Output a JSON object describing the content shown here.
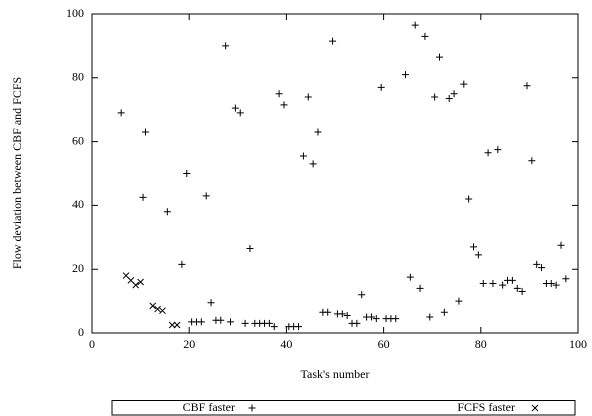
{
  "chart_data": {
    "type": "scatter",
    "x_label": "Task's number",
    "y_label": "Flow deviation between CBF and FCFS",
    "xlim": [
      0,
      100
    ],
    "xticks": [
      0,
      20,
      40,
      60,
      80,
      100
    ],
    "ylim": [
      0,
      100
    ],
    "yticks": [
      0,
      20,
      40,
      60,
      80,
      100
    ],
    "legend": "bottom",
    "series": [
      {
        "name": "CBF faster",
        "color": "#000000",
        "marker": "plus",
        "x": [
          6,
          11,
          10.5,
          15.5,
          18.5,
          19.5,
          20.5,
          21.5,
          22.5,
          23.5,
          24.5,
          25.5,
          26.5,
          27.5,
          28.5,
          29.5,
          30.5,
          31.5,
          32.5,
          33.5,
          34.5,
          35.5,
          36.5,
          37.5,
          38.5,
          39.5,
          40.5,
          41.5,
          42.5,
          43.5,
          44.5,
          45.5,
          46.5,
          47.5,
          48.5,
          49.5,
          50.5,
          51.5,
          52.5,
          53.5,
          54.5,
          55.5,
          56.5,
          57.5,
          58.5,
          59.5,
          60.5,
          61.5,
          62.5,
          64.5,
          65.5,
          66.5,
          67.5,
          68.5,
          69.5,
          70.5,
          71.5,
          72.5,
          73.5,
          74.5,
          75.5,
          76.5,
          77.5,
          78.5,
          79.5,
          80.5,
          81.5,
          82.5,
          83.5,
          84.5,
          85.5,
          86.5,
          87.5,
          88.5,
          89.5,
          90.5,
          91.5,
          92.5,
          93.5,
          94.5,
          95.5,
          96.5,
          97.5
        ],
        "values": [
          69,
          63,
          42.5,
          38,
          21.5,
          50,
          3.5,
          3.5,
          3.5,
          43,
          9.5,
          4,
          4,
          90,
          3.5,
          70.5,
          69,
          3,
          26.5,
          3,
          3,
          3,
          3,
          2,
          75,
          71.5,
          2,
          2,
          2,
          55.5,
          74,
          53,
          63,
          6.5,
          6.5,
          91.5,
          6,
          6,
          5.5,
          3,
          3,
          12,
          5,
          5,
          4.5,
          77,
          4.5,
          4.5,
          4.5,
          81,
          17.5,
          96.5,
          14,
          93,
          5,
          74,
          86.5,
          6.5,
          73.5,
          75,
          10,
          78,
          42,
          27,
          24.5,
          15.5,
          56.5,
          15.5,
          57.5,
          15,
          16.5,
          16.5,
          14,
          13,
          77.5,
          54,
          21.5,
          20.5,
          15.5,
          15.5,
          15,
          27.5,
          17
        ]
      },
      {
        "name": "FCFS faster",
        "color": "#000000",
        "marker": "cross",
        "x": [
          7,
          8,
          9,
          10,
          12.5,
          13.5,
          14.5,
          16.5,
          17.5
        ],
        "values": [
          18,
          16.5,
          15,
          16,
          8.5,
          7.5,
          7,
          2.5,
          2.5
        ]
      }
    ]
  }
}
